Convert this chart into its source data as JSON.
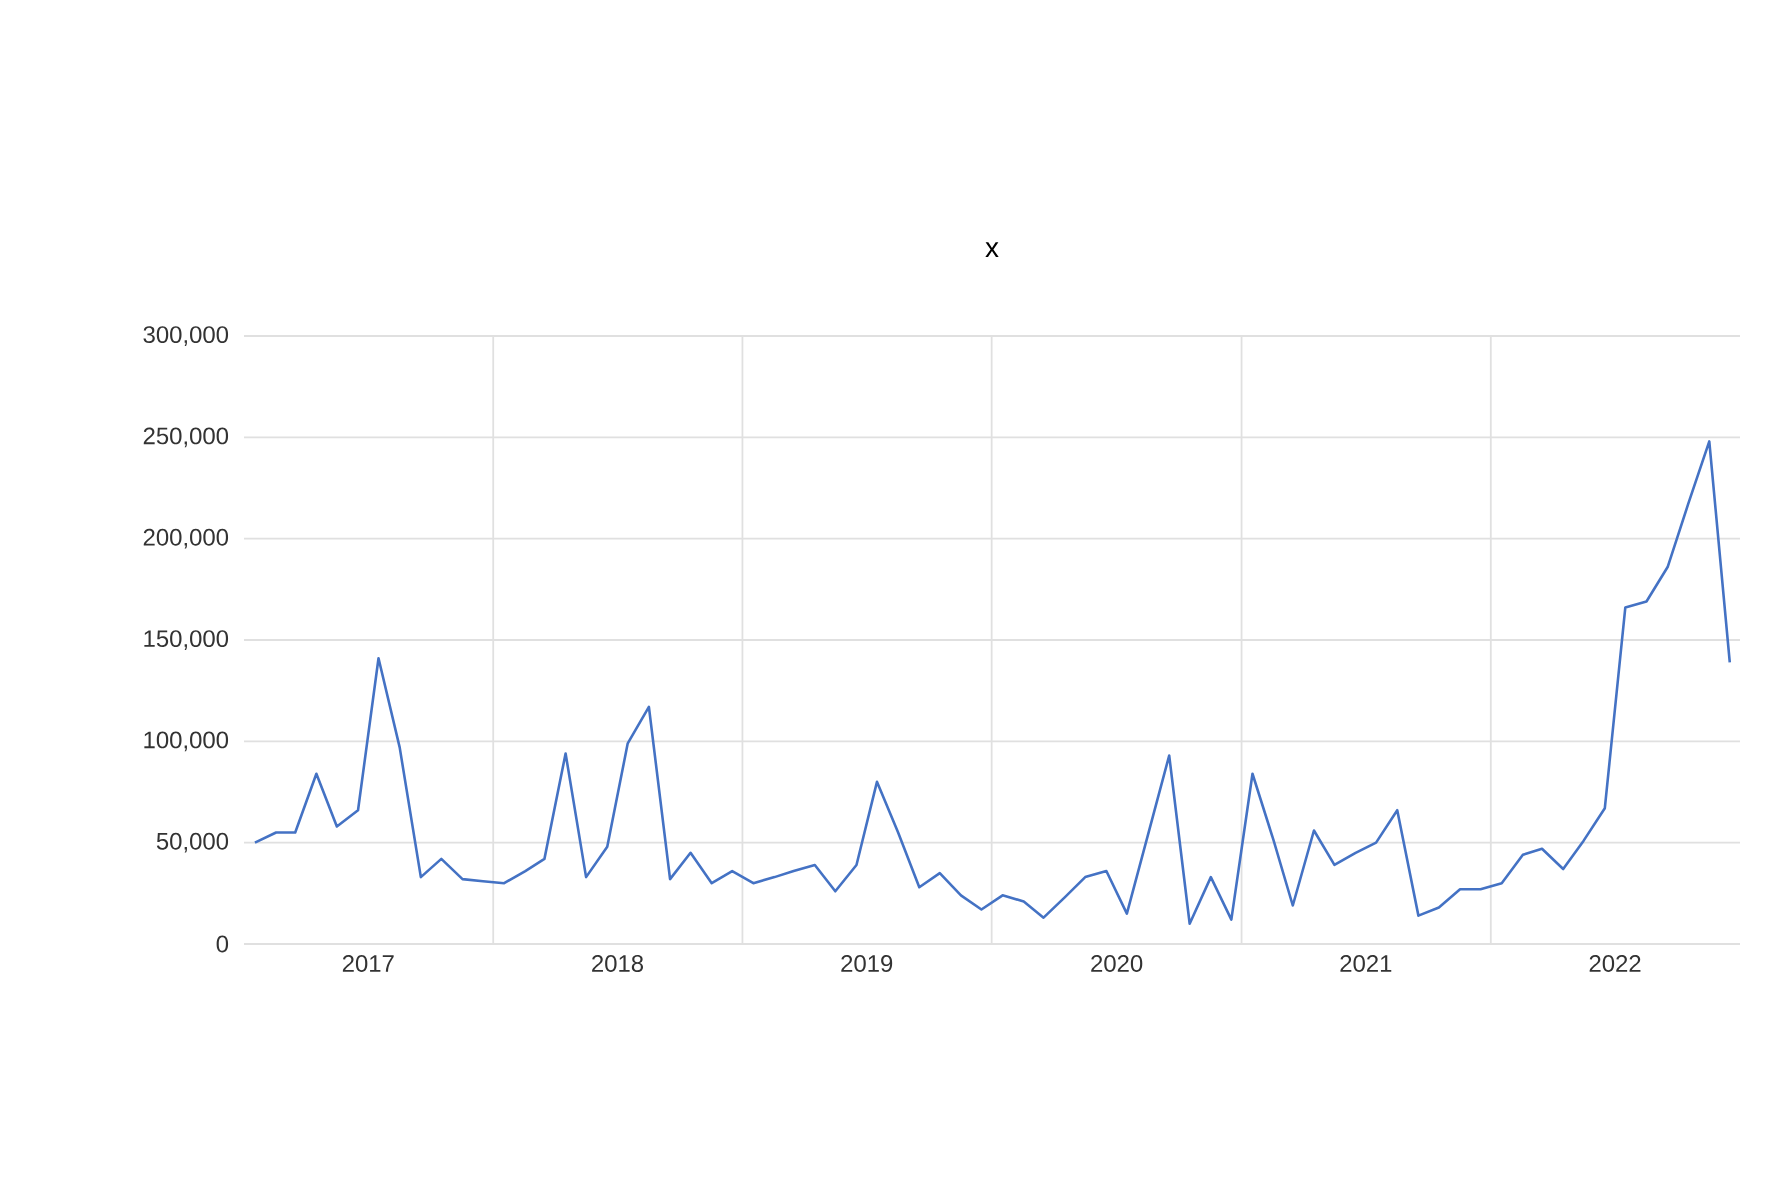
{
  "chart_data": {
    "type": "line",
    "title": "x",
    "x": [
      "2017-01",
      "2017-02",
      "2017-03",
      "2017-04",
      "2017-05",
      "2017-06",
      "2017-07",
      "2017-08",
      "2017-09",
      "2017-10",
      "2017-11",
      "2017-12",
      "2018-01",
      "2018-02",
      "2018-03",
      "2018-04",
      "2018-05",
      "2018-06",
      "2018-07",
      "2018-08",
      "2018-09",
      "2018-10",
      "2018-11",
      "2018-12",
      "2019-01",
      "2019-02",
      "2019-03",
      "2019-04",
      "2019-05",
      "2019-06",
      "2019-07",
      "2019-08",
      "2019-09",
      "2019-10",
      "2019-11",
      "2019-12",
      "2020-01",
      "2020-02",
      "2020-03",
      "2020-04",
      "2020-05",
      "2020-06",
      "2020-07",
      "2020-08",
      "2020-09",
      "2020-10",
      "2020-11",
      "2020-12",
      "2021-01",
      "2021-02",
      "2021-03",
      "2021-04",
      "2021-05",
      "2021-06",
      "2021-07",
      "2021-08",
      "2021-09",
      "2021-10",
      "2021-11",
      "2021-12",
      "2022-01",
      "2022-02",
      "2022-03",
      "2022-04",
      "2022-05",
      "2022-06",
      "2022-07",
      "2022-08",
      "2022-09",
      "2022-10",
      "2022-11",
      "2022-12"
    ],
    "series": [
      {
        "color": "#4472c4",
        "values": [
          50000,
          55000,
          55000,
          84000,
          58000,
          66000,
          141000,
          97000,
          33000,
          42000,
          32000,
          31000,
          30000,
          36000,
          42000,
          94000,
          33000,
          48000,
          99000,
          117000,
          32000,
          45000,
          30000,
          36000,
          30000,
          33000,
          36000,
          39000,
          26000,
          39000,
          80000,
          55000,
          28000,
          35000,
          24000,
          17000,
          24000,
          21000,
          13000,
          23000,
          33000,
          36000,
          15000,
          54000,
          93000,
          10000,
          33000,
          12000,
          84000,
          51000,
          19000,
          56000,
          39000,
          45000,
          50000,
          66000,
          14000,
          18000,
          27000,
          27000,
          30000,
          44000,
          47000,
          37000,
          51000,
          67000,
          166000,
          169000,
          186000,
          217000,
          248000,
          139000
        ]
      }
    ],
    "xlim": [
      "2016-12-16",
      "2022-12-16"
    ],
    "xticks": [
      {
        "value": "2017-06-16",
        "label": "2017"
      },
      {
        "value": "2018-06-16",
        "label": "2018"
      },
      {
        "value": "2019-06-16",
        "label": "2019"
      },
      {
        "value": "2020-06-16",
        "label": "2020"
      },
      {
        "value": "2021-06-16",
        "label": "2021"
      },
      {
        "value": "2022-06-16",
        "label": "2022"
      },
      {
        "value": "2017-12-16",
        "label": null
      },
      {
        "value": "2018-12-16",
        "label": null
      },
      {
        "value": "2019-12-16",
        "label": null
      },
      {
        "value": "2020-12-16",
        "label": null
      },
      {
        "value": "2021-12-16",
        "label": null
      }
    ],
    "ylim": [
      0,
      300000
    ],
    "yticks": [
      {
        "value": 0,
        "label": "0"
      },
      {
        "value": 50000,
        "label": "50,000"
      },
      {
        "value": 100000,
        "label": "100,000"
      },
      {
        "value": 150000,
        "label": "150,000"
      },
      {
        "value": 200000,
        "label": "200,000"
      },
      {
        "value": 250000,
        "label": "250,000"
      },
      {
        "value": 300000,
        "label": "300,000"
      }
    ],
    "grid": true,
    "marker": "none",
    "line_style": "solid"
  }
}
